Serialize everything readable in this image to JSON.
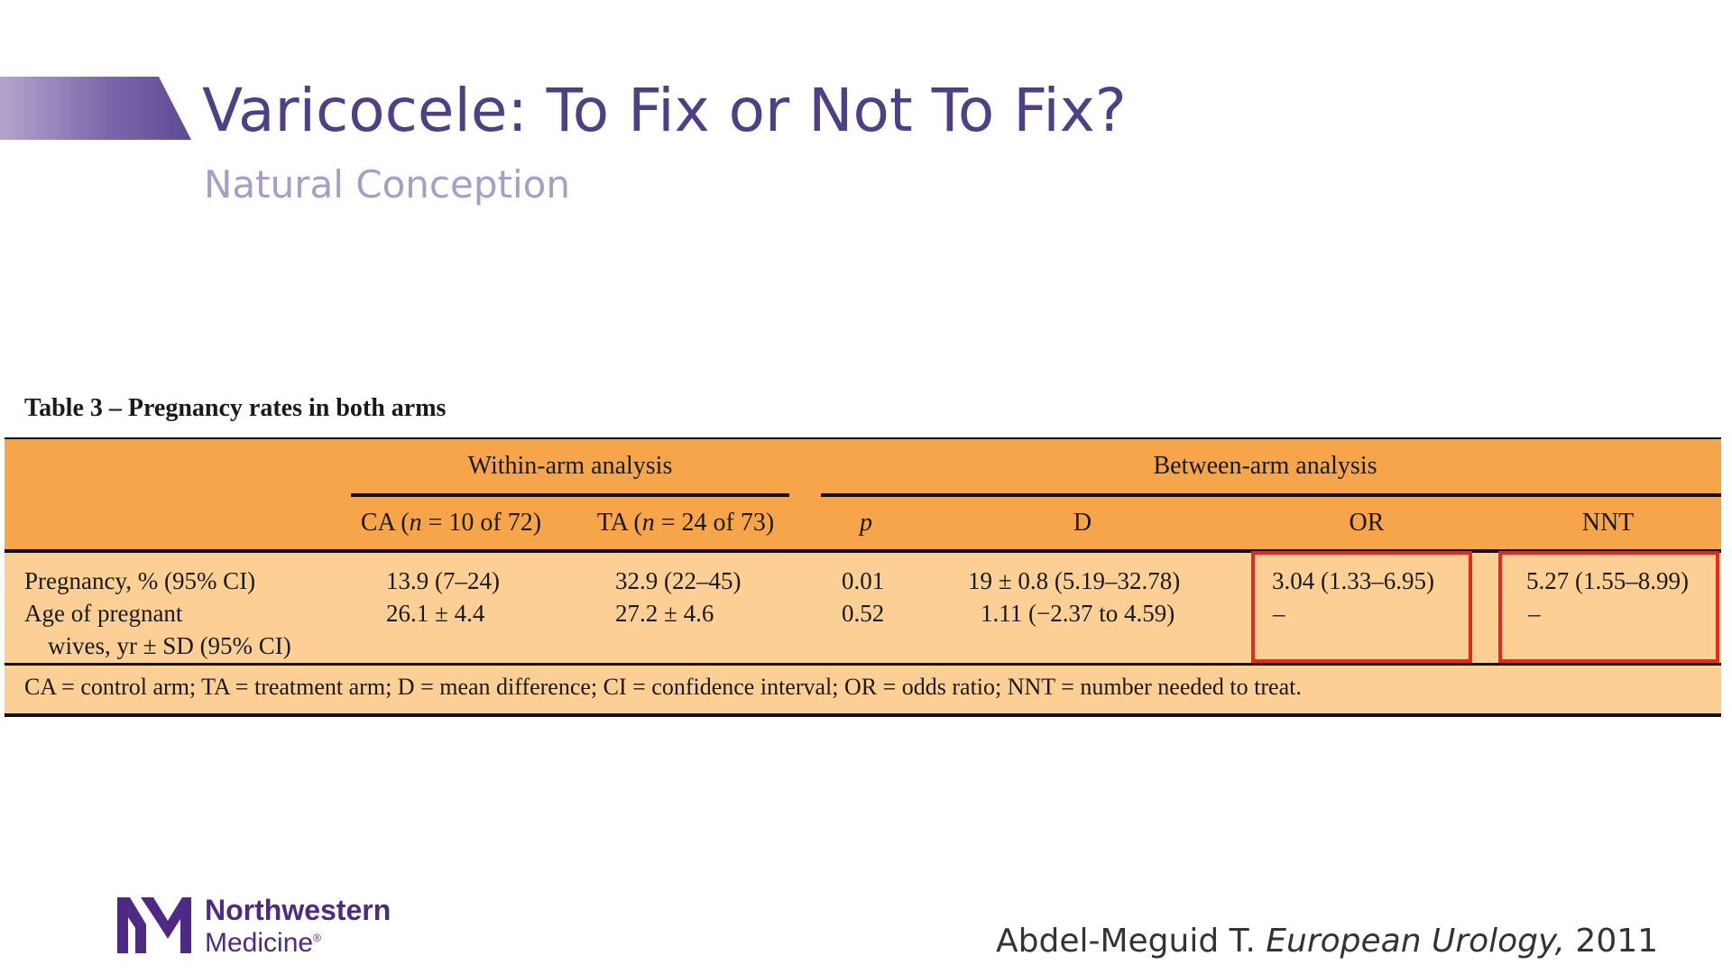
{
  "slide": {
    "title": "Varicocele: To Fix or Not To Fix?",
    "subtitle": "Natural Conception"
  },
  "table": {
    "caption": "Table 3 – Pregnancy rates in both arms",
    "group_headers": {
      "within": "Within-arm analysis",
      "between": "Between-arm analysis"
    },
    "columns": {
      "ca_prefix": "CA (",
      "ca_n": "n",
      "ca_suffix": " = 10 of 72)",
      "ta_prefix": "TA (",
      "ta_n": "n",
      "ta_suffix": " = 24 of 73)",
      "p": "p",
      "d": "D",
      "or": "OR",
      "nnt": "NNT"
    },
    "rows": [
      {
        "label": "Pregnancy, % (95% CI)",
        "ca": "13.9 (7–24)",
        "ta": "32.9 (22–45)",
        "p": "0.01",
        "d": "19 ± 0.8 (5.19–32.78)",
        "or": "3.04 (1.33–6.95)",
        "nnt": "5.27 (1.55–8.99)"
      },
      {
        "label": "Age of pregnant",
        "label_cont": "wives, yr ± SD (95% CI)",
        "ca": "26.1 ± 4.4",
        "ta": "27.2 ± 4.6",
        "p": "0.52",
        "d": "1.11 (−2.37 to 4.59)",
        "or": "–",
        "nnt": "–"
      }
    ],
    "footnote": "CA = control arm; TA = treatment arm; D = mean difference; CI = confidence interval; OR = odds ratio; NNT = number needed to treat."
  },
  "footer": {
    "logo_name": "Northwestern",
    "logo_sub": "Medicine",
    "logo_mark": "®",
    "citation_author": "Abdel-Meguid T. ",
    "citation_journal": "European Urology,",
    "citation_year": " 2011"
  },
  "colors": {
    "title": "#4f3f86",
    "subtitle": "#a99dc6",
    "header_band": "#f6a54a",
    "body_band": "#fccf94",
    "highlight": "#e8281e",
    "logo": "#4e2a84"
  },
  "icons": [
    "northwestern-medicine-logo-icon"
  ]
}
